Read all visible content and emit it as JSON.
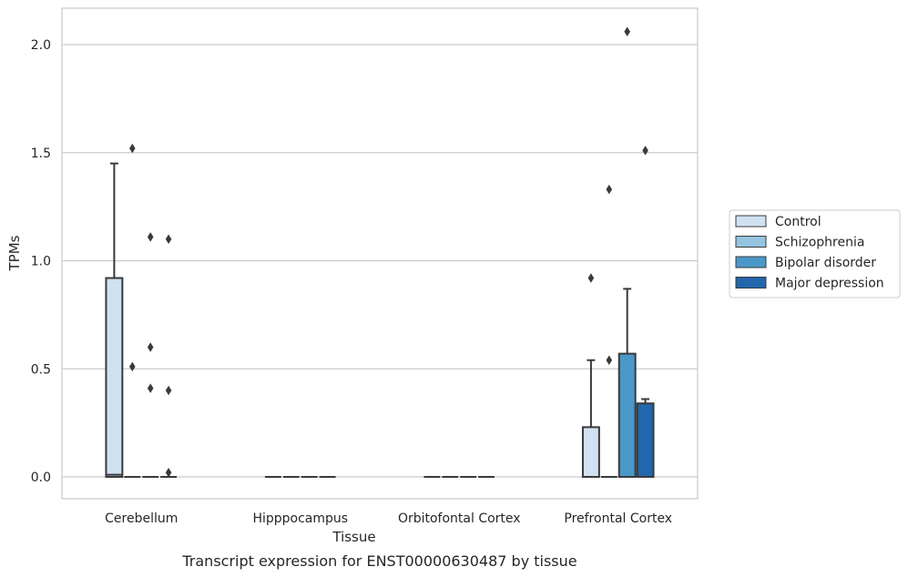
{
  "chart_data": {
    "type": "box",
    "title": "",
    "caption": "Transcript expression for ENST00000630487 by tissue",
    "xlabel": "Tissue",
    "ylabel": "TPMs",
    "ylim": [
      -0.1,
      2.17
    ],
    "yticks": [
      "0.0",
      "0.5",
      "1.0",
      "1.5",
      "2.0"
    ],
    "ytick_values": [
      0,
      0.5,
      1.0,
      1.5,
      2.0
    ],
    "grid": true,
    "legend_position": "right",
    "categories": [
      "Cerebellum",
      "Hipppocampus",
      "Orbitofontal Cortex",
      "Prefrontal Cortex"
    ],
    "series": [
      {
        "name": "Control",
        "color": "#d0e1f2",
        "boxes": [
          {
            "q1": 0.0,
            "median": 0.01,
            "q3": 0.92,
            "whisker_low": 0.0,
            "whisker_high": 1.45,
            "outliers": []
          },
          {
            "q1": 0.0,
            "median": 0.0,
            "q3": 0.0,
            "whisker_low": 0.0,
            "whisker_high": 0.0,
            "outliers": []
          },
          {
            "q1": 0.0,
            "median": 0.0,
            "q3": 0.0,
            "whisker_low": 0.0,
            "whisker_high": 0.0,
            "outliers": []
          },
          {
            "q1": 0.0,
            "median": 0.0,
            "q3": 0.23,
            "whisker_low": 0.0,
            "whisker_high": 0.54,
            "outliers": [
              0.92
            ]
          }
        ]
      },
      {
        "name": "Schizophrenia",
        "color": "#94c4df",
        "boxes": [
          {
            "q1": 0.0,
            "median": 0.0,
            "q3": 0.0,
            "whisker_low": 0.0,
            "whisker_high": 0.0,
            "outliers": [
              1.52,
              0.51
            ]
          },
          {
            "q1": 0.0,
            "median": 0.0,
            "q3": 0.0,
            "whisker_low": 0.0,
            "whisker_high": 0.0,
            "outliers": []
          },
          {
            "q1": 0.0,
            "median": 0.0,
            "q3": 0.0,
            "whisker_low": 0.0,
            "whisker_high": 0.0,
            "outliers": []
          },
          {
            "q1": 0.0,
            "median": 0.0,
            "q3": 0.0,
            "whisker_low": 0.0,
            "whisker_high": 0.0,
            "outliers": [
              1.33,
              0.54
            ]
          }
        ]
      },
      {
        "name": "Bipolar disorder",
        "color": "#4a98c9",
        "boxes": [
          {
            "q1": 0.0,
            "median": 0.0,
            "q3": 0.0,
            "whisker_low": 0.0,
            "whisker_high": 0.0,
            "outliers": [
              1.11,
              0.6,
              0.41
            ]
          },
          {
            "q1": 0.0,
            "median": 0.0,
            "q3": 0.0,
            "whisker_low": 0.0,
            "whisker_high": 0.0,
            "outliers": []
          },
          {
            "q1": 0.0,
            "median": 0.0,
            "q3": 0.0,
            "whisker_low": 0.0,
            "whisker_high": 0.0,
            "outliers": []
          },
          {
            "q1": 0.0,
            "median": 0.0,
            "q3": 0.57,
            "whisker_low": 0.0,
            "whisker_high": 0.87,
            "outliers": [
              2.06
            ]
          }
        ]
      },
      {
        "name": "Major depression",
        "color": "#2266ab",
        "boxes": [
          {
            "q1": 0.0,
            "median": 0.0,
            "q3": 0.0,
            "whisker_low": 0.0,
            "whisker_high": 0.0,
            "outliers": [
              1.1,
              0.4,
              0.02
            ]
          },
          {
            "q1": 0.0,
            "median": 0.0,
            "q3": 0.0,
            "whisker_low": 0.0,
            "whisker_high": 0.0,
            "outliers": []
          },
          {
            "q1": 0.0,
            "median": 0.0,
            "q3": 0.0,
            "whisker_low": 0.0,
            "whisker_high": 0.0,
            "outliers": []
          },
          {
            "q1": 0.0,
            "median": 0.0,
            "q3": 0.34,
            "whisker_low": 0.0,
            "whisker_high": 0.36,
            "outliers": [
              1.51
            ]
          }
        ]
      }
    ]
  }
}
